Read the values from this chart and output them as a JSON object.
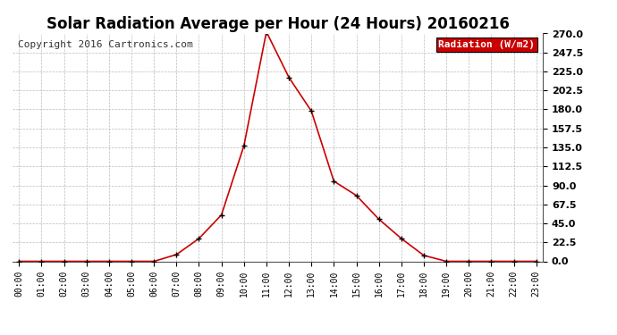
{
  "title": "Solar Radiation Average per Hour (24 Hours) 20160216",
  "copyright_text": "Copyright 2016 Cartronics.com",
  "legend_label": "Radiation (W/m2)",
  "hours": [
    "00:00",
    "01:00",
    "02:00",
    "03:00",
    "04:00",
    "05:00",
    "06:00",
    "07:00",
    "08:00",
    "09:00",
    "10:00",
    "11:00",
    "12:00",
    "13:00",
    "14:00",
    "15:00",
    "16:00",
    "17:00",
    "18:00",
    "19:00",
    "20:00",
    "21:00",
    "22:00",
    "23:00"
  ],
  "values": [
    0.0,
    0.0,
    0.0,
    0.0,
    0.0,
    0.0,
    0.0,
    8.0,
    27.0,
    55.0,
    137.0,
    272.0,
    218.0,
    178.0,
    95.0,
    78.0,
    50.0,
    27.0,
    7.0,
    0.0,
    0.0,
    0.0,
    0.0,
    0.0
  ],
  "line_color": "#cc0000",
  "marker_color": "#000000",
  "background_color": "#ffffff",
  "grid_color": "#bbbbbb",
  "legend_bg": "#cc0000",
  "legend_text_color": "#ffffff",
  "title_fontsize": 12,
  "copyright_fontsize": 8,
  "ylim": [
    0.0,
    270.0
  ],
  "yticks": [
    0.0,
    22.5,
    45.0,
    67.5,
    90.0,
    112.5,
    135.0,
    157.5,
    180.0,
    202.5,
    225.0,
    247.5,
    270.0
  ]
}
